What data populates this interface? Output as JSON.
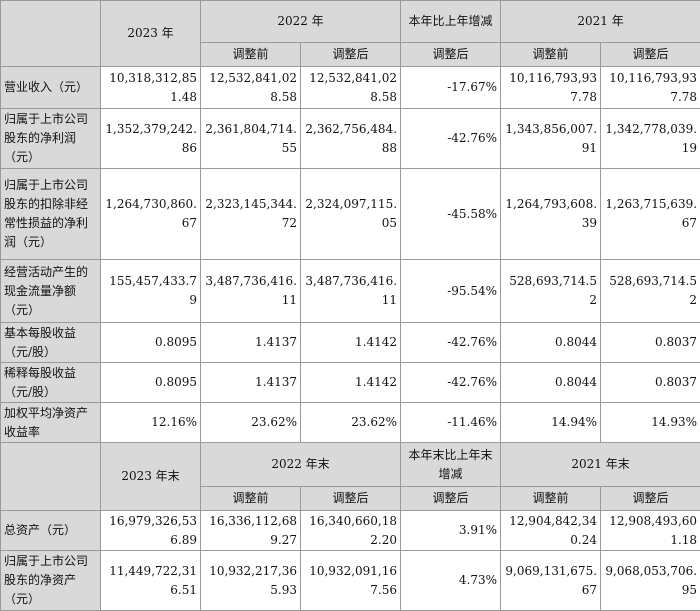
{
  "header_top": {
    "year_2023": "2023 年",
    "year_2022": "2022 年",
    "change": "本年比上年增减",
    "year_2021": "2021 年",
    "before_adj": "调整前",
    "after_adj": "调整后",
    "change_sub": "调整后"
  },
  "rows_top": [
    {
      "label": "营业收入（元）",
      "v2023": "10,318,312,851.48",
      "v2022_before": "12,532,841,028.58",
      "v2022_after": "12,532,841,028.58",
      "change": "-17.67%",
      "v2021_before": "10,116,793,937.78",
      "v2021_after": "10,116,793,937.78"
    },
    {
      "label": "归属于上市公司股东的净利润（元）",
      "v2023": "1,352,379,242.86",
      "v2022_before": "2,361,804,714.55",
      "v2022_after": "2,362,756,484.88",
      "change": "-42.76%",
      "v2021_before": "1,343,856,007.91",
      "v2021_after": "1,342,778,039.19"
    },
    {
      "label": "归属于上市公司股东的扣除非经常性损益的净利润（元）",
      "v2023": "1,264,730,860.67",
      "v2022_before": "2,323,145,344.72",
      "v2022_after": "2,324,097,115.05",
      "change": "-45.58%",
      "v2021_before": "1,264,793,608.39",
      "v2021_after": "1,263,715,639.67"
    },
    {
      "label": "经营活动产生的现金流量净额（元）",
      "v2023": "155,457,433.79",
      "v2022_before": "3,487,736,416.11",
      "v2022_after": "3,487,736,416.11",
      "change": "-95.54%",
      "v2021_before": "528,693,714.52",
      "v2021_after": "528,693,714.52"
    },
    {
      "label": "基本每股收益（元/股）",
      "v2023": "0.8095",
      "v2022_before": "1.4137",
      "v2022_after": "1.4142",
      "change": "-42.76%",
      "v2021_before": "0.8044",
      "v2021_after": "0.8037"
    },
    {
      "label": "稀释每股收益（元/股）",
      "v2023": "0.8095",
      "v2022_before": "1.4137",
      "v2022_after": "1.4142",
      "change": "-42.76%",
      "v2021_before": "0.8044",
      "v2021_after": "0.8037"
    },
    {
      "label": "加权平均净资产收益率",
      "v2023": "12.16%",
      "v2022_before": "23.62%",
      "v2022_after": "23.62%",
      "change": "-11.46%",
      "v2021_before": "14.94%",
      "v2021_after": "14.93%"
    }
  ],
  "header_bottom": {
    "year_2023": "2023 年末",
    "year_2022": "2022 年末",
    "change": "本年末比上年末增减",
    "year_2021": "2021 年末",
    "before_adj": "调整前",
    "after_adj": "调整后",
    "change_sub": "调整后"
  },
  "rows_bottom": [
    {
      "label": "总资产（元）",
      "v2023": "16,979,326,536.89",
      "v2022_before": "16,336,112,689.27",
      "v2022_after": "16,340,660,182.20",
      "change": "3.91%",
      "v2021_before": "12,904,842,340.24",
      "v2021_after": "12,908,493,601.18"
    },
    {
      "label": "归属于上市公司股东的净资产（元）",
      "v2023": "11,449,722,316.51",
      "v2022_before": "10,932,217,365.93",
      "v2022_after": "10,932,091,167.56",
      "change": "4.73%",
      "v2021_before": "9,069,131,675.67",
      "v2021_after": "9,068,053,706.95"
    }
  ]
}
